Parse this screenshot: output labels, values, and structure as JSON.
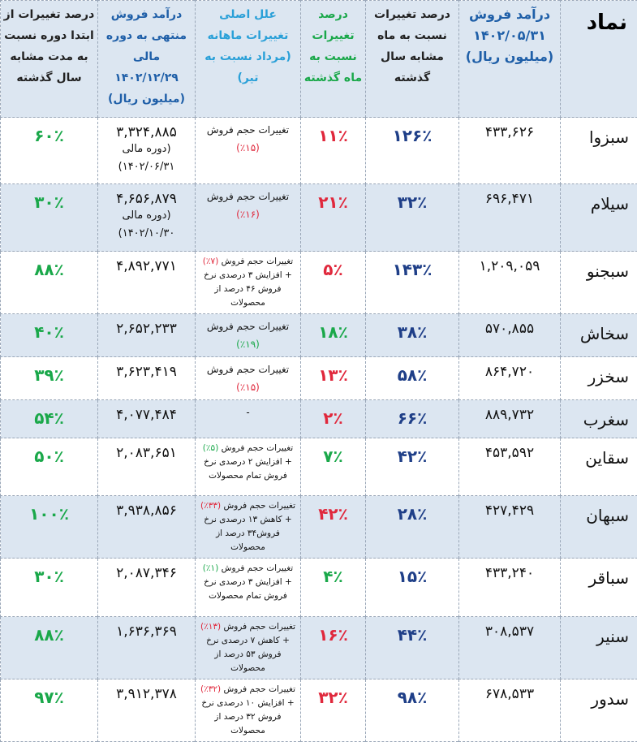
{
  "headers": {
    "symbol": "نماد",
    "sales": "درآمد فروش ۱۴۰۲/۰۵/۳۱ (میلیون ریال)",
    "yoy": "درصد تغییرات نسبت به ماه مشابه سال گذشته",
    "mom": "درصد تغییرات نسبت به ماه گذشته",
    "cause": "علل اصلی تغییرات ماهانه (مرداد نسبت به تیر)",
    "period_sales": "درآمد فروش منتهی به دوره مالی ۱۴۰۲/۱۲/۲۹ (میلیون ریال)",
    "period_change": "درصد تغییرات از ابتدا دوره نسبت به مدت مشابه سال گذشته"
  },
  "colors": {
    "red": "#e0283c",
    "green": "#1aa84a",
    "blue": "#1f3f88",
    "row_alt": "#dce6f1"
  },
  "rows": [
    {
      "symbol": "سبزوا",
      "sales": "۴۳۳,۶۲۶",
      "yoy": "۱۲۶٪",
      "mom": "۱۱٪",
      "mom_color": "red",
      "cause_pre": "تغییرات حجم فروش",
      "cause_pct": "(۱۵٪)",
      "cause_color": "red",
      "cause_post": "",
      "period_sales": "۳,۳۲۴,۸۸۵",
      "period_note": "(دوره مالی ۱۴۰۲/۰۶/۳۱)",
      "period_change": "۶۰٪"
    },
    {
      "symbol": "سیلام",
      "sales": "۶۹۶,۴۷۱",
      "yoy": "۳۲٪",
      "mom": "۲۱٪",
      "mom_color": "red",
      "cause_pre": "تغییرات حجم فروش",
      "cause_pct": "(۱۶٪)",
      "cause_color": "red",
      "cause_post": "",
      "period_sales": "۴,۶۵۶,۸۷۹",
      "period_note": "(دوره مالی ۱۴۰۲/۱۰/۳۰)",
      "period_change": "۳۰٪"
    },
    {
      "symbol": "سبجنو",
      "sales": "۱,۲۰۹,۰۵۹",
      "yoy": "۱۴۳٪",
      "mom": "۵٪",
      "mom_color": "red",
      "cause_pre": "تغییرات حجم فروش",
      "cause_pct": "(۷٪)",
      "cause_color": "red",
      "cause_post": "+ افزایش ۳ درصدی نرخ فروش ۴۶ درصد از محصولات",
      "period_sales": "۴,۸۹۲,۷۷۱",
      "period_note": "",
      "period_change": "۸۸٪"
    },
    {
      "symbol": "سخاش",
      "sales": "۵۷۰,۸۵۵",
      "yoy": "۳۸٪",
      "mom": "۱۸٪",
      "mom_color": "green",
      "cause_pre": "تغییرات حجم فروش",
      "cause_pct": "(۱۹٪)",
      "cause_color": "green",
      "cause_post": "",
      "period_sales": "۲,۶۵۲,۲۳۳",
      "period_note": "",
      "period_change": "۴۰٪"
    },
    {
      "symbol": "سخزر",
      "sales": "۸۶۴,۷۲۰",
      "yoy": "۵۸٪",
      "mom": "۱۳٪",
      "mom_color": "red",
      "cause_pre": "تغییرات حجم فروش",
      "cause_pct": "(۱۵٪)",
      "cause_color": "red",
      "cause_post": "",
      "period_sales": "۳,۶۲۳,۴۱۹",
      "period_note": "",
      "period_change": "۳۹٪"
    },
    {
      "symbol": "سغرب",
      "sales": "۸۸۹,۷۳۲",
      "yoy": "۶۶٪",
      "mom": "۲٪",
      "mom_color": "red",
      "cause_pre": "-",
      "cause_pct": "",
      "cause_color": "red",
      "cause_post": "",
      "period_sales": "۴,۰۷۷,۴۸۴",
      "period_note": "",
      "period_change": "۵۴٪"
    },
    {
      "symbol": "سقاین",
      "sales": "۴۵۳,۵۹۲",
      "yoy": "۴۲٪",
      "mom": "۷٪",
      "mom_color": "green",
      "cause_pre": "تغییرات حجم فروش",
      "cause_pct": "(۵٪)",
      "cause_color": "green",
      "cause_post": "+ افزایش ۲ درصدی نرخ فروش تمام محصولات",
      "period_sales": "۲,۰۸۳,۶۵۱",
      "period_note": "",
      "period_change": "۵۰٪"
    },
    {
      "symbol": "سبهان",
      "sales": "۴۲۷,۴۲۹",
      "yoy": "۲۸٪",
      "mom": "۴۲٪",
      "mom_color": "red",
      "cause_pre": "تغییرات حجم فروش",
      "cause_pct": "(۳۳٪)",
      "cause_color": "red",
      "cause_post": "+ کاهش ۱۳ درصدی نرخ فروش۳۴ درصد از محصولات",
      "period_sales": "۳,۹۳۸,۸۵۶",
      "period_note": "",
      "period_change": "۱۰۰٪"
    },
    {
      "symbol": "سباقر",
      "sales": "۴۳۳,۲۴۰",
      "yoy": "۱۵٪",
      "mom": "۴٪",
      "mom_color": "green",
      "cause_pre": "تغییرات حجم فروش",
      "cause_pct": "(۱٪)",
      "cause_color": "green",
      "cause_post": "+ افزایش ۳ درصدی نرخ فروش تمام محصولات",
      "period_sales": "۲,۰۸۷,۳۴۶",
      "period_note": "",
      "period_change": "۳۰٪"
    },
    {
      "symbol": "سنیر",
      "sales": "۳۰۸,۵۳۷",
      "yoy": "۴۴٪",
      "mom": "۱۶٪",
      "mom_color": "red",
      "cause_pre": "تغییرات حجم فروش",
      "cause_pct": "(۱۳٪)",
      "cause_color": "red",
      "cause_post": "+ کاهش ۷ درصدی نرخ فروش ۵۳ درصد از محصولات",
      "period_sales": "۱,۶۳۶,۳۶۹",
      "period_note": "",
      "period_change": "۸۸٪"
    },
    {
      "symbol": "سدور",
      "sales": "۶۷۸,۵۳۳",
      "yoy": "۹۸٪",
      "mom": "۳۲٪",
      "mom_color": "red",
      "cause_pre": "تغییرات حجم فروش",
      "cause_pct": "(۳۲٪)",
      "cause_color": "red",
      "cause_post": "+ افزایش ۱۰ درصدی نرخ فروش ۳۲ درصد از محصولات",
      "period_sales": "۳,۹۱۲,۳۷۸",
      "period_note": "",
      "period_change": "۹۷٪"
    }
  ]
}
